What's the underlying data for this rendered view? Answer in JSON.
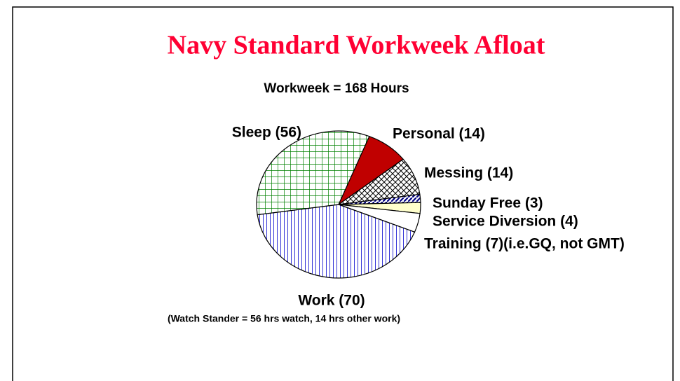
{
  "chart_data": {
    "type": "pie",
    "title": "Navy Standard Workweek Afloat",
    "subtitle": "Workweek = 168 Hours",
    "annotation": "(Watch Stander = 56 hrs watch, 14 hrs other work)",
    "categories": [
      "Personal (14)",
      "Messing (14)",
      "Sunday Free (3)",
      "Service Diversion (4)",
      "Training (7)(i.e.GQ, not GMT)",
      "Work (70)",
      "Sleep (56)"
    ],
    "values": [
      14,
      14,
      3,
      4,
      7,
      70,
      56
    ],
    "colors": [
      "#c00000",
      "#000000",
      "#000080",
      "#ffffcc",
      "#ffffff",
      "#0000cc",
      "#008000"
    ],
    "patterns": [
      "solid",
      "crosshatch",
      "diagonal",
      "solid",
      "solid",
      "vertical",
      "grid"
    ]
  }
}
